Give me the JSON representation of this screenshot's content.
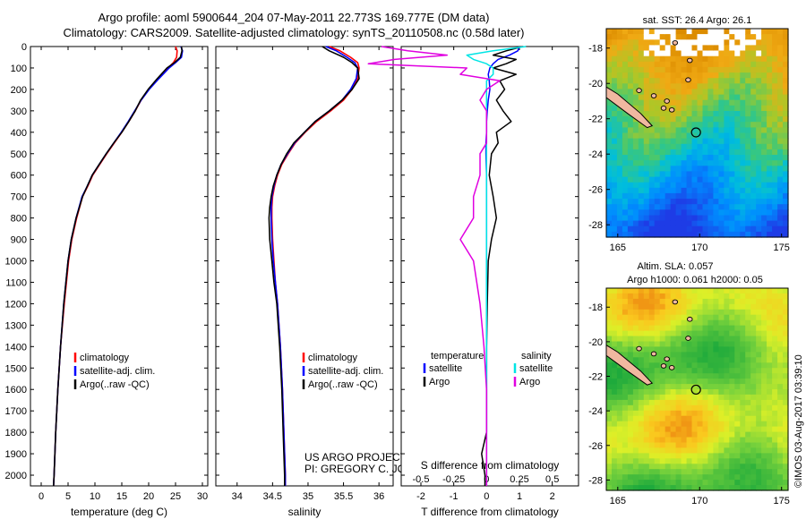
{
  "title_line1": "Argo profile: aoml 5900644_204 07-May-2011 22.773S 169.777E (DM data)",
  "title_line2": "Climatology: CARS2009. Satellite-adjusted climatology: synTS_20110508.nc (0.58d later)",
  "colors": {
    "climatology": "#ff0000",
    "satellite": "#0000ff",
    "argo": "#000000",
    "sat_salinity": "#00e5e5",
    "argo_salinity": "#e000e0"
  },
  "depth_axis": {
    "ylim": [
      0,
      2050
    ],
    "ticks": [
      0,
      100,
      200,
      300,
      400,
      500,
      600,
      700,
      800,
      900,
      1000,
      1100,
      1200,
      1300,
      1400,
      1500,
      1600,
      1700,
      1800,
      1900,
      2000
    ]
  },
  "chart_data": [
    {
      "type": "line",
      "name": "temperature",
      "xlabel": "temperature (deg C)",
      "xlim": [
        -2,
        31
      ],
      "xticks": [
        0,
        5,
        10,
        15,
        20,
        25,
        30
      ],
      "depth": [
        0,
        20,
        50,
        75,
        100,
        150,
        200,
        250,
        300,
        350,
        400,
        450,
        500,
        550,
        600,
        650,
        700,
        800,
        900,
        1000,
        1200,
        1400,
        1600,
        1800,
        2000,
        2050
      ],
      "series": [
        {
          "name": "climatology",
          "values": [
            25.0,
            25.3,
            25.2,
            24.6,
            23.6,
            21.8,
            20.0,
            18.6,
            17.5,
            16.3,
            15.0,
            13.6,
            12.2,
            10.9,
            9.6,
            8.7,
            7.7,
            6.6,
            5.7,
            5.1,
            4.3,
            3.6,
            3.1,
            2.7,
            2.4,
            2.3
          ]
        },
        {
          "name": "satellite-adj. clim.",
          "values": [
            26.0,
            26.3,
            26.1,
            25.0,
            23.8,
            21.9,
            20.1,
            18.6,
            17.4,
            16.2,
            14.9,
            13.5,
            12.1,
            10.8,
            9.5,
            8.6,
            7.6,
            6.5,
            5.6,
            5.0,
            4.2,
            3.6,
            3.1,
            2.7,
            2.4,
            2.3
          ]
        },
        {
          "name": "Argo(..raw -QC)",
          "values": [
            26.1,
            26.2,
            25.9,
            24.8,
            23.4,
            21.6,
            19.9,
            18.5,
            17.5,
            16.3,
            15.0,
            13.5,
            12.1,
            10.8,
            9.5,
            8.6,
            7.7,
            6.5,
            5.6,
            5.0,
            4.2,
            3.6,
            3.1,
            2.7,
            2.4,
            2.3
          ]
        }
      ],
      "legend": [
        "climatology",
        "satellite-adj. clim.",
        "Argo(..raw -QC)"
      ]
    },
    {
      "type": "line",
      "name": "salinity",
      "xlabel": "salinity",
      "xlim": [
        33.7,
        36.2
      ],
      "xticks": [
        34,
        34.5,
        35,
        35.5,
        36
      ],
      "depth": [
        0,
        20,
        50,
        75,
        100,
        150,
        200,
        250,
        300,
        350,
        400,
        450,
        500,
        550,
        600,
        650,
        700,
        750,
        800,
        900,
        1000,
        1100,
        1200,
        1400,
        1600,
        1800,
        2000,
        2050
      ],
      "series": [
        {
          "name": "climatology",
          "values": [
            35.3,
            35.45,
            35.6,
            35.7,
            35.72,
            35.7,
            35.62,
            35.5,
            35.32,
            35.12,
            34.96,
            34.82,
            34.72,
            34.63,
            34.57,
            34.53,
            34.5,
            34.49,
            34.49,
            34.5,
            34.52,
            34.54,
            34.57,
            34.61,
            34.64,
            34.66,
            34.68,
            34.68
          ]
        },
        {
          "name": "satellite-adj. clim.",
          "values": [
            35.25,
            35.4,
            35.55,
            35.66,
            35.7,
            35.68,
            35.6,
            35.48,
            35.3,
            35.1,
            34.95,
            34.81,
            34.71,
            34.62,
            34.56,
            34.52,
            34.49,
            34.48,
            34.48,
            34.49,
            34.51,
            34.54,
            34.57,
            34.61,
            34.64,
            34.66,
            34.68,
            34.68
          ]
        },
        {
          "name": "Argo(..raw -QC)",
          "values": [
            35.2,
            35.3,
            35.5,
            35.62,
            35.7,
            35.72,
            35.62,
            35.48,
            35.3,
            35.1,
            34.95,
            34.8,
            34.7,
            34.62,
            34.56,
            34.51,
            34.48,
            34.46,
            34.45,
            34.46,
            34.49,
            34.52,
            34.56,
            34.6,
            34.63,
            34.65,
            34.67,
            34.67
          ]
        }
      ],
      "legend": [
        "climatology",
        "satellite-adj. clim.",
        "Argo(..raw -QC)"
      ],
      "credit_line1": "US ARGO PROJECT",
      "credit_line2": "PI: GREGORY C. JOHNSON"
    },
    {
      "type": "line",
      "name": "differences",
      "xlabel": "T difference from climatology",
      "xlim": [
        -2.6,
        2.8
      ],
      "xticks": [
        -2,
        -1,
        0,
        1,
        2
      ],
      "s_xlabel": "S difference from climatology",
      "s_xticks": [
        "-0.5",
        "-0.25",
        "0",
        "0.25",
        "0.5"
      ],
      "depth": [
        0,
        20,
        40,
        60,
        80,
        100,
        130,
        160,
        200,
        250,
        300,
        350,
        400,
        450,
        500,
        600,
        700,
        800,
        900,
        1000,
        1200,
        1400,
        1600,
        1800,
        1900,
        2000,
        2050
      ],
      "series": [
        {
          "name": "temperature satellite",
          "values": [
            1.0,
            0.95,
            0.7,
            0.35,
            0.2,
            0.1,
            0.05,
            0.08,
            0.1,
            0.05,
            0.02,
            0.0,
            0.0,
            -0.02,
            -0.02,
            0.0,
            0.0,
            0.0,
            0.0,
            0.0,
            0.0,
            0.0,
            0.0,
            0.0,
            0.0,
            0.0,
            0.0
          ]
        },
        {
          "name": "temperature Argo",
          "values": [
            1.1,
            0.6,
            0.2,
            0.9,
            0.6,
            0.2,
            0.9,
            0.4,
            0.55,
            0.3,
            0.5,
            0.75,
            0.3,
            0.35,
            0.15,
            0.08,
            0.2,
            0.3,
            0.15,
            0.05,
            0.02,
            0.0,
            0.0,
            0.0,
            -0.15,
            -0.05,
            -0.05
          ]
        },
        {
          "name": "salinity satellite",
          "values": [
            0.3,
            0.05,
            -0.15,
            -0.1,
            0.0,
            0.05,
            0.05,
            0.0,
            0.0,
            0.0,
            0.0,
            0.0,
            0.0,
            0.0,
            0.0,
            0.0,
            0.0,
            0.0,
            0.0,
            0.0,
            0.0,
            0.0,
            0.0,
            0.0,
            0.0,
            0.0,
            0.0
          ]
        },
        {
          "name": "salinity Argo",
          "values": [
            -0.8,
            -0.6,
            -0.3,
            -0.7,
            -0.9,
            -0.15,
            -0.2,
            0.1,
            0.0,
            -0.05,
            0.0,
            0.0,
            0.0,
            0.0,
            -0.05,
            -0.05,
            -0.1,
            -0.1,
            -0.2,
            -0.1,
            -0.05,
            -0.02,
            0.0,
            0.0,
            0.0,
            0.0,
            0.0
          ]
        }
      ],
      "legend_temp_head": "temperature",
      "legend_sal_head": "salinity",
      "legend_temp": [
        "satellite",
        "Argo"
      ],
      "legend_sal": [
        "satellite",
        "Argo"
      ]
    }
  ],
  "maps": [
    {
      "title_line1": "sat. SST: 26.4  Argo: 26.1",
      "title_line2": "",
      "xticks": [
        165,
        170,
        175
      ],
      "yticks": [
        -18,
        -20,
        -22,
        -24,
        -26,
        -28
      ],
      "xlim": [
        164.3,
        175.4
      ],
      "ylim": [
        -28.7,
        -16.9
      ],
      "float_lon": 169.777,
      "float_lat": -22.773
    },
    {
      "title_line1": "Altim. SLA: 0.057",
      "title_line2": "Argo h1000: 0.061 h2000: 0.05",
      "xticks": [
        165,
        170,
        175
      ],
      "yticks": [
        -18,
        -20,
        -22,
        -24,
        -26,
        -28
      ],
      "xlim": [
        164.3,
        175.4
      ],
      "ylim": [
        -28.6,
        -16.9
      ],
      "float_lon": 169.777,
      "float_lat": -22.773
    }
  ],
  "stamp": "©IMOS 03-Aug-2017 03:39:10"
}
